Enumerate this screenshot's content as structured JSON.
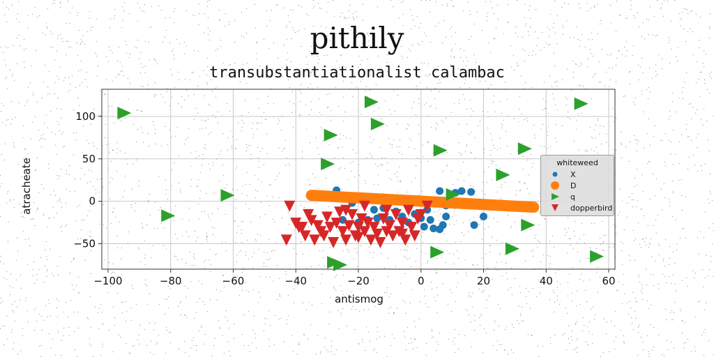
{
  "suptitle": "pithily",
  "chart_data": {
    "type": "scatter",
    "title": "transubstantiationalist calambac",
    "xlabel": "antismog",
    "ylabel": "atracheate",
    "xlim": [
      -102,
      62
    ],
    "ylim": [
      -80,
      132
    ],
    "xticks": [
      -100,
      -80,
      -60,
      -40,
      -20,
      0,
      20,
      40,
      60
    ],
    "yticks": [
      100,
      50,
      0,
      -50
    ],
    "xtick_labels": [
      "−100",
      "−80",
      "−60",
      "−40",
      "−20",
      "0",
      "20",
      "40",
      "60"
    ],
    "ytick_labels": [
      "100",
      "50",
      "0",
      "−50"
    ],
    "grid": true,
    "legend": {
      "title": "whiteweed",
      "placement": "center-right"
    },
    "series": [
      {
        "name": "X",
        "marker": "circle",
        "color": "#1f77b4",
        "points": [
          [
            -27,
            13
          ],
          [
            -22,
            -2
          ],
          [
            -25,
            -22
          ],
          [
            -20,
            -25
          ],
          [
            -17,
            -22
          ],
          [
            -15,
            -10
          ],
          [
            -14,
            -20
          ],
          [
            -12,
            -8
          ],
          [
            -10,
            -22
          ],
          [
            -8,
            -12
          ],
          [
            -6,
            -18
          ],
          [
            -4,
            -25
          ],
          [
            -2,
            -15
          ],
          [
            0,
            -20
          ],
          [
            1,
            -30
          ],
          [
            2,
            -10
          ],
          [
            3,
            -22
          ],
          [
            4,
            -32
          ],
          [
            6,
            -33
          ],
          [
            7,
            -28
          ],
          [
            8,
            -18
          ],
          [
            6,
            12
          ],
          [
            8,
            -5
          ],
          [
            11,
            10
          ],
          [
            13,
            12
          ],
          [
            16,
            11
          ],
          [
            17,
            -28
          ],
          [
            20,
            -18
          ]
        ]
      },
      {
        "name": "D",
        "marker": "line-thick",
        "color": "#ff7f0e",
        "points": [
          [
            -35,
            7
          ],
          [
            36,
            -7
          ]
        ]
      },
      {
        "name": "q",
        "marker": "triangle-right",
        "color": "#2ca02c",
        "points": [
          [
            -95,
            104
          ],
          [
            -81,
            -17
          ],
          [
            -62,
            7
          ],
          [
            -30,
            44
          ],
          [
            -29,
            78
          ],
          [
            -28,
            -72
          ],
          [
            -26,
            -75
          ],
          [
            -16,
            117
          ],
          [
            -14,
            91
          ],
          [
            5,
            -60
          ],
          [
            6,
            60
          ],
          [
            10,
            8
          ],
          [
            26,
            31
          ],
          [
            29,
            -56
          ],
          [
            33,
            62
          ],
          [
            34,
            -28
          ],
          [
            51,
            115
          ],
          [
            56,
            -65
          ]
        ]
      },
      {
        "name": "dopperbird",
        "marker": "triangle-down",
        "color": "#d62728",
        "points": [
          [
            -42,
            -5
          ],
          [
            -40,
            -25
          ],
          [
            -38,
            -30
          ],
          [
            -37,
            -40
          ],
          [
            -36,
            -15
          ],
          [
            -35,
            -22
          ],
          [
            -34,
            -45
          ],
          [
            -33,
            -28
          ],
          [
            -32,
            -35
          ],
          [
            -31,
            -40
          ],
          [
            -30,
            -18
          ],
          [
            -29,
            -30
          ],
          [
            -28,
            -48
          ],
          [
            -27,
            -25
          ],
          [
            -26,
            -12
          ],
          [
            -25,
            -35
          ],
          [
            -24,
            -45
          ],
          [
            -23,
            -28
          ],
          [
            -22,
            -15
          ],
          [
            -21,
            -40
          ],
          [
            -20,
            -30
          ],
          [
            -19,
            -20
          ],
          [
            -18,
            -35
          ],
          [
            -17,
            -25
          ],
          [
            -16,
            -45
          ],
          [
            -15,
            -30
          ],
          [
            -14,
            -38
          ],
          [
            -13,
            -48
          ],
          [
            -12,
            -20
          ],
          [
            -11,
            -35
          ],
          [
            -10,
            -28
          ],
          [
            -9,
            -40
          ],
          [
            -8,
            -15
          ],
          [
            -7,
            -35
          ],
          [
            -6,
            -25
          ],
          [
            -5,
            -45
          ],
          [
            -4,
            -10
          ],
          [
            -3,
            -30
          ],
          [
            -2,
            -40
          ],
          [
            -1,
            -20
          ],
          [
            0,
            -15
          ],
          [
            2,
            -5
          ],
          [
            -43,
            -45
          ],
          [
            -39,
            -30
          ],
          [
            -18,
            -5
          ],
          [
            -24,
            -10
          ],
          [
            -11,
            -10
          ],
          [
            -6,
            -38
          ],
          [
            -20,
            -42
          ]
        ]
      }
    ]
  }
}
